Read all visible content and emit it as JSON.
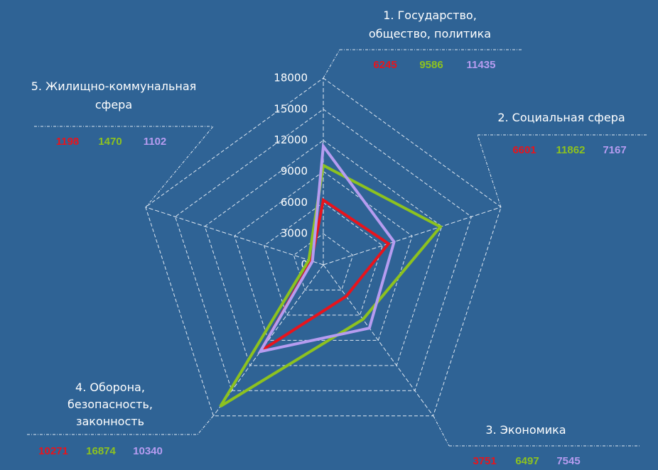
{
  "chart_data": {
    "type": "radar",
    "categories": [
      "1. Государство,\nобщество, политика",
      "2. Социальная сфера",
      "3. Экономика",
      "4. Оборона,\nбезопасность,\nзаконность",
      "5. Жилищно-коммунальная\nсфера"
    ],
    "series": [
      {
        "name": "red",
        "color": "#e8141c",
        "values": [
          6245,
          6601,
          3751,
          10271,
          1198
        ]
      },
      {
        "name": "green",
        "color": "#8dc21f",
        "values": [
          9586,
          11862,
          6497,
          16874,
          1470
        ]
      },
      {
        "name": "purple",
        "color": "#b69cf0",
        "values": [
          11435,
          7167,
          7545,
          10340,
          1102
        ]
      }
    ],
    "ylim": [
      0,
      18000
    ],
    "yticks": [
      0,
      3000,
      6000,
      9000,
      12000,
      15000,
      18000
    ],
    "grid": true
  }
}
